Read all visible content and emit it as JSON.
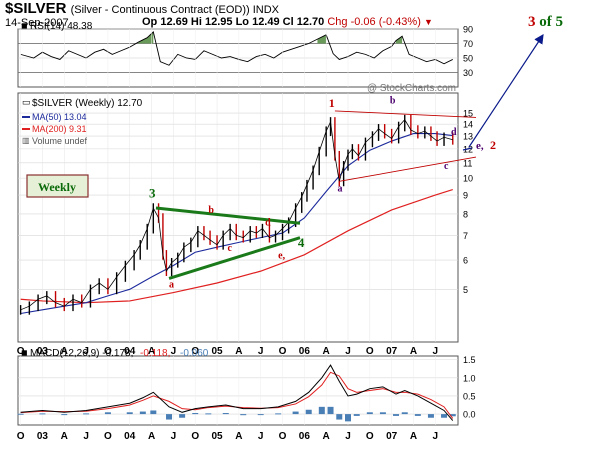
{
  "header": {
    "symbol": "$SILVER",
    "description": "(Silver - Continuous Contract (EOD)) INDX",
    "date": "14-Sep-2007",
    "open": "Op 12.69",
    "high": "Hi 12.95",
    "low": "Lo 12.49",
    "close": "Cl 12.70",
    "change": "Chg -0.06 (-0.43%)",
    "change_marker": "▼"
  },
  "watermark": "@ StockCharts.com",
  "wave_label": {
    "num": "3",
    "of": " of 5"
  },
  "colors": {
    "price_up": "#000000",
    "price_down": "#c00000",
    "ma50": "#1c2a9c",
    "ma200": "#e02020",
    "trendline_green": "#1a7a1a",
    "label_red": "#c00000",
    "label_purple": "#4b006e",
    "rsi_fill": "#6a9a5a",
    "macd_hist": "#4a7fb6",
    "weekly_box_bg": "#e6f0d6"
  },
  "chart_data": [
    {
      "type": "line",
      "panel": "rsi",
      "title": "RSI(14) 48.38",
      "ylim": [
        10,
        90
      ],
      "y_ticks": [
        "90",
        "70",
        "50",
        "30"
      ],
      "overbought": 70,
      "oversold": 30,
      "x": [
        2002.75,
        2002.9,
        2003.0,
        2003.1,
        2003.2,
        2003.3,
        2003.4,
        2003.5,
        2003.6,
        2003.7,
        2003.8,
        2003.9,
        2004.0,
        2004.1,
        2004.2,
        2004.27,
        2004.35,
        2004.45,
        2004.55,
        2004.65,
        2004.75,
        2004.85,
        2004.95,
        2005.05,
        2005.15,
        2005.25,
        2005.35,
        2005.45,
        2005.55,
        2005.65,
        2005.75,
        2005.85,
        2005.95,
        2006.05,
        2006.15,
        2006.25,
        2006.33,
        2006.4,
        2006.5,
        2006.6,
        2006.7,
        2006.8,
        2006.9,
        2007.0,
        2007.05,
        2007.12,
        2007.2,
        2007.3,
        2007.4,
        2007.5,
        2007.6,
        2007.7
      ],
      "values": [
        55,
        50,
        58,
        52,
        48,
        60,
        55,
        50,
        58,
        62,
        55,
        60,
        65,
        72,
        78,
        86,
        45,
        40,
        55,
        50,
        48,
        60,
        55,
        50,
        52,
        48,
        45,
        52,
        55,
        50,
        58,
        62,
        66,
        70,
        76,
        82,
        56,
        48,
        52,
        58,
        55,
        50,
        60,
        66,
        74,
        80,
        55,
        50,
        45,
        48,
        42,
        48
      ]
    },
    {
      "type": "line",
      "panel": "price",
      "title": "$SILVER (Weekly) 12.70",
      "scale": "log",
      "ylim": [
        3.6,
        17
      ],
      "y_ticks": [
        "15",
        "14",
        "13",
        "12",
        "11",
        "10",
        "9",
        "8",
        "7",
        "6",
        "5"
      ],
      "x_ticks": [
        "O",
        "03",
        "A",
        "J",
        "O",
        "04",
        "A",
        "J",
        "O",
        "05",
        "A",
        "J",
        "O",
        "06",
        "A",
        "J",
        "O",
        "07",
        "A",
        "J"
      ],
      "series": [
        {
          "name": "$SILVER (Weekly) 12.70",
          "x": [
            2002.75,
            2002.85,
            2002.95,
            2003.05,
            2003.15,
            2003.25,
            2003.35,
            2003.45,
            2003.55,
            2003.65,
            2003.75,
            2003.85,
            2003.95,
            2004.05,
            2004.12,
            2004.2,
            2004.27,
            2004.33,
            2004.38,
            2004.42,
            2004.48,
            2004.55,
            2004.62,
            2004.7,
            2004.78,
            2004.85,
            2004.92,
            2005.0,
            2005.07,
            2005.15,
            2005.22,
            2005.3,
            2005.38,
            2005.45,
            2005.52,
            2005.6,
            2005.67,
            2005.75,
            2005.82,
            2005.9,
            2005.97,
            2006.03,
            2006.1,
            2006.17,
            2006.25,
            2006.3,
            2006.35,
            2006.4,
            2006.45,
            2006.5,
            2006.55,
            2006.62,
            2006.7,
            2006.78,
            2006.85,
            2006.92,
            2007.0,
            2007.08,
            2007.15,
            2007.22,
            2007.3,
            2007.38,
            2007.45,
            2007.52,
            2007.6,
            2007.7
          ],
          "values": [
            4.4,
            4.5,
            4.7,
            4.8,
            4.6,
            4.5,
            4.7,
            4.6,
            5.0,
            5.2,
            5.0,
            5.4,
            5.8,
            6.2,
            6.6,
            7.3,
            8.3,
            7.8,
            6.2,
            5.6,
            5.9,
            6.1,
            6.5,
            6.7,
            7.2,
            7.0,
            6.8,
            6.6,
            7.0,
            7.3,
            7.0,
            6.9,
            7.2,
            7.1,
            7.3,
            6.9,
            7.0,
            7.3,
            7.6,
            8.3,
            8.9,
            9.6,
            10.5,
            11.8,
            13.4,
            14.2,
            11.5,
            9.8,
            10.8,
            11.6,
            12.0,
            11.5,
            12.5,
            13.0,
            13.6,
            13.2,
            12.8,
            13.8,
            14.4,
            13.5,
            13.2,
            13.4,
            13.0,
            12.6,
            12.9,
            12.7
          ]
        },
        {
          "name": "MA(50) 13.04",
          "x": [
            2002.75,
            2003.0,
            2003.25,
            2003.5,
            2003.75,
            2004.0,
            2004.25,
            2004.5,
            2004.75,
            2005.0,
            2005.25,
            2005.5,
            2005.75,
            2006.0,
            2006.25,
            2006.5,
            2006.75,
            2007.0,
            2007.25,
            2007.5,
            2007.7
          ],
          "values": [
            4.3,
            4.4,
            4.5,
            4.6,
            4.8,
            5.0,
            5.4,
            5.8,
            6.3,
            6.5,
            6.7,
            6.9,
            7.1,
            7.8,
            9.2,
            10.8,
            11.9,
            12.6,
            13.2,
            13.2,
            13.04
          ]
        },
        {
          "name": "MA(200) 9.31",
          "x": [
            2002.75,
            2003.0,
            2003.5,
            2004.0,
            2004.5,
            2005.0,
            2005.5,
            2006.0,
            2006.5,
            2007.0,
            2007.5,
            2007.7
          ],
          "values": [
            4.7,
            4.65,
            4.6,
            4.65,
            4.9,
            5.2,
            5.6,
            6.2,
            7.2,
            8.2,
            9.0,
            9.31
          ]
        }
      ]
    },
    {
      "type": "line",
      "panel": "macd",
      "title": "MACD(12,26,9) -0.178, -0.118, -0.060",
      "ylim": [
        -0.3,
        1.6
      ],
      "y_ticks": [
        "1.5",
        "1.0",
        "0.5",
        "0.0"
      ],
      "x": [
        2002.75,
        2003.0,
        2003.25,
        2003.5,
        2003.75,
        2004.0,
        2004.15,
        2004.27,
        2004.45,
        2004.6,
        2004.75,
        2004.9,
        2005.1,
        2005.3,
        2005.5,
        2005.7,
        2005.9,
        2006.05,
        2006.2,
        2006.3,
        2006.4,
        2006.5,
        2006.6,
        2006.75,
        2006.9,
        2007.05,
        2007.15,
        2007.3,
        2007.45,
        2007.6,
        2007.7
      ],
      "series": [
        {
          "name": "MACD",
          "values": [
            0.05,
            0.1,
            0.05,
            0.1,
            0.2,
            0.3,
            0.45,
            0.6,
            0.2,
            0.05,
            0.15,
            0.2,
            0.25,
            0.15,
            0.15,
            0.2,
            0.35,
            0.6,
            1.0,
            1.35,
            0.9,
            0.5,
            0.55,
            0.7,
            0.75,
            0.55,
            0.65,
            0.5,
            0.3,
            0.1,
            -0.178
          ]
        },
        {
          "name": "Signal",
          "values": [
            0.04,
            0.08,
            0.07,
            0.08,
            0.15,
            0.25,
            0.38,
            0.5,
            0.35,
            0.15,
            0.12,
            0.18,
            0.22,
            0.18,
            0.16,
            0.18,
            0.28,
            0.48,
            0.8,
            1.15,
            1.05,
            0.7,
            0.6,
            0.65,
            0.7,
            0.6,
            0.6,
            0.55,
            0.4,
            0.2,
            -0.118
          ]
        },
        {
          "name": "Histogram",
          "values": [
            0.01,
            0.02,
            -0.02,
            0.02,
            0.05,
            0.05,
            0.07,
            0.1,
            -0.15,
            -0.1,
            0.03,
            0.02,
            0.03,
            -0.03,
            -0.01,
            0.02,
            0.07,
            0.12,
            0.2,
            0.2,
            -0.15,
            -0.2,
            -0.05,
            0.05,
            0.05,
            -0.05,
            0.05,
            -0.05,
            -0.1,
            -0.1,
            -0.06
          ]
        }
      ]
    }
  ],
  "legend": {
    "price": "$SILVER (Weekly) 12.70",
    "ma50": "MA(50) 13.04",
    "ma200": "MA(200) 9.31",
    "volume": "Volume undef"
  },
  "weekly_box": "Weekly",
  "annotations": {
    "w3": "3",
    "w4": "4",
    "w1": "1",
    "tri_a": "a",
    "tri_b": "b",
    "tri_c": "c",
    "tri_d": "d",
    "tri_e": "e,",
    "top_a": "a",
    "top_b": "b",
    "top_c": "c",
    "top_d": "d",
    "top_e": "e,",
    "top_2": "2"
  }
}
